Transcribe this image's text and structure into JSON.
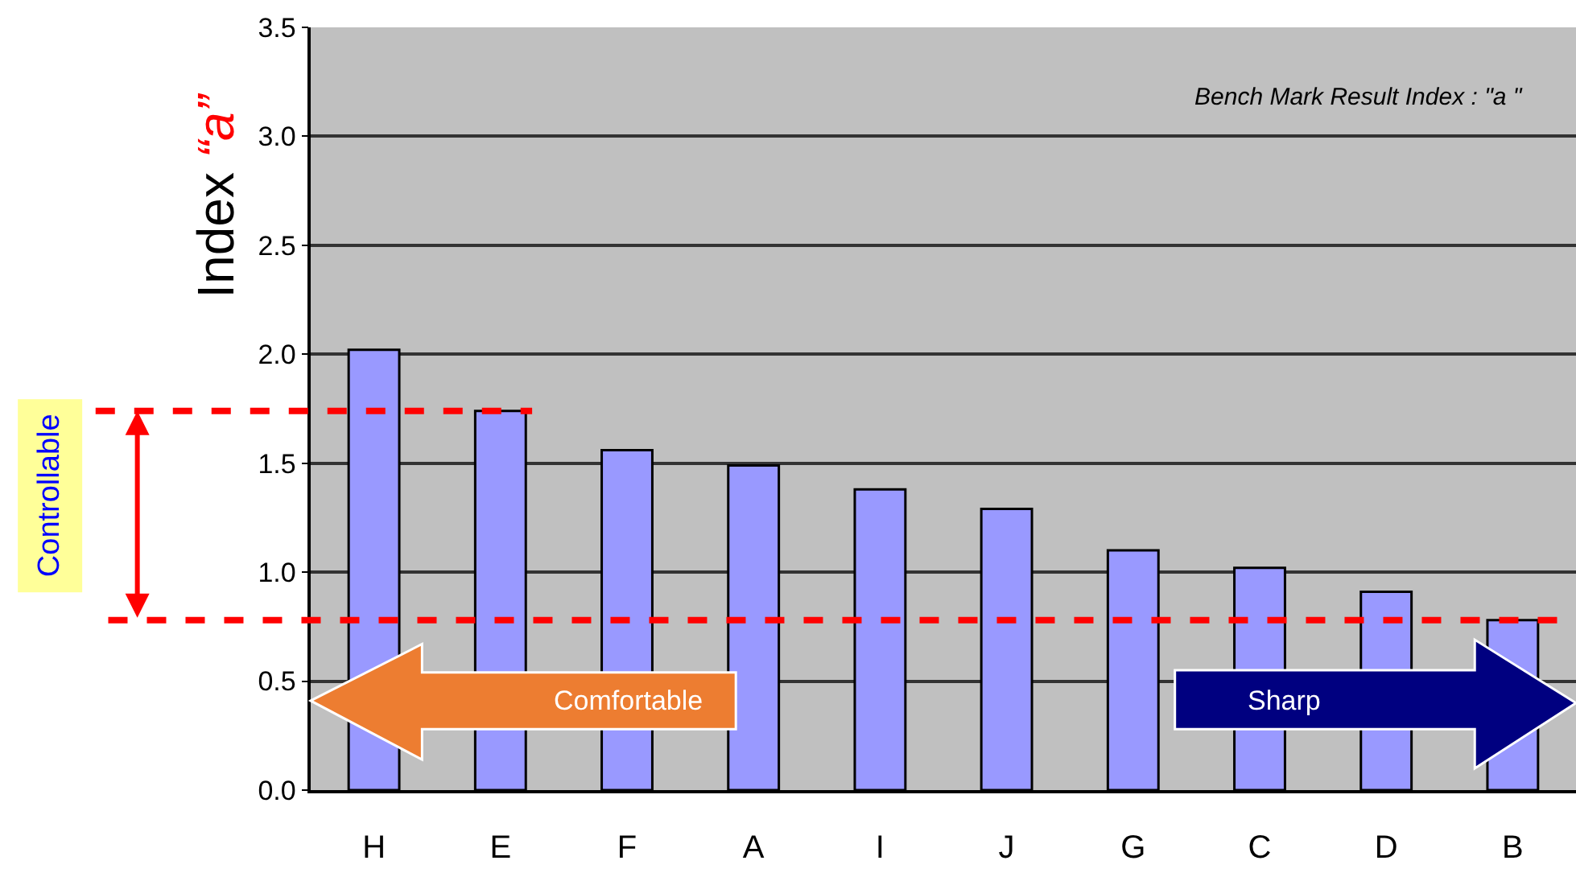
{
  "chart_data": {
    "type": "bar",
    "ylabel": "Index “a”",
    "categories": [
      "H",
      "E",
      "F",
      "A",
      "I",
      "J",
      "G",
      "C",
      "D",
      "B"
    ],
    "values": [
      2.02,
      1.74,
      1.56,
      1.49,
      1.38,
      1.29,
      1.1,
      1.02,
      0.91,
      0.78
    ],
    "color": "#9999ff",
    "ylim": [
      0,
      3.5
    ],
    "yticks": [
      {
        "value": 0,
        "label": "0.0"
      },
      {
        "value": 0.5,
        "label": "0.5"
      },
      {
        "value": 1,
        "label": "1.0"
      },
      {
        "value": 1.5,
        "label": "1.5"
      },
      {
        "value": 2,
        "label": "2.0"
      },
      {
        "value": 2.5,
        "label": "2.5"
      },
      {
        "value": 3,
        "label": "3.0"
      },
      {
        "value": 3.5,
        "label": "3.5"
      }
    ],
    "grid": "y",
    "ref_lines": [
      {
        "axis": "y",
        "value": 1.74,
        "color": "#ff0000",
        "line_style": "dashed"
      },
      {
        "axis": "y",
        "value": 0.78,
        "color": "#ff0000",
        "line_style": "dashed"
      }
    ],
    "annotations": [
      "Bench Mark Result Index : \"a \"",
      "Controllable",
      "Comfortable",
      "Sharp"
    ]
  }
}
